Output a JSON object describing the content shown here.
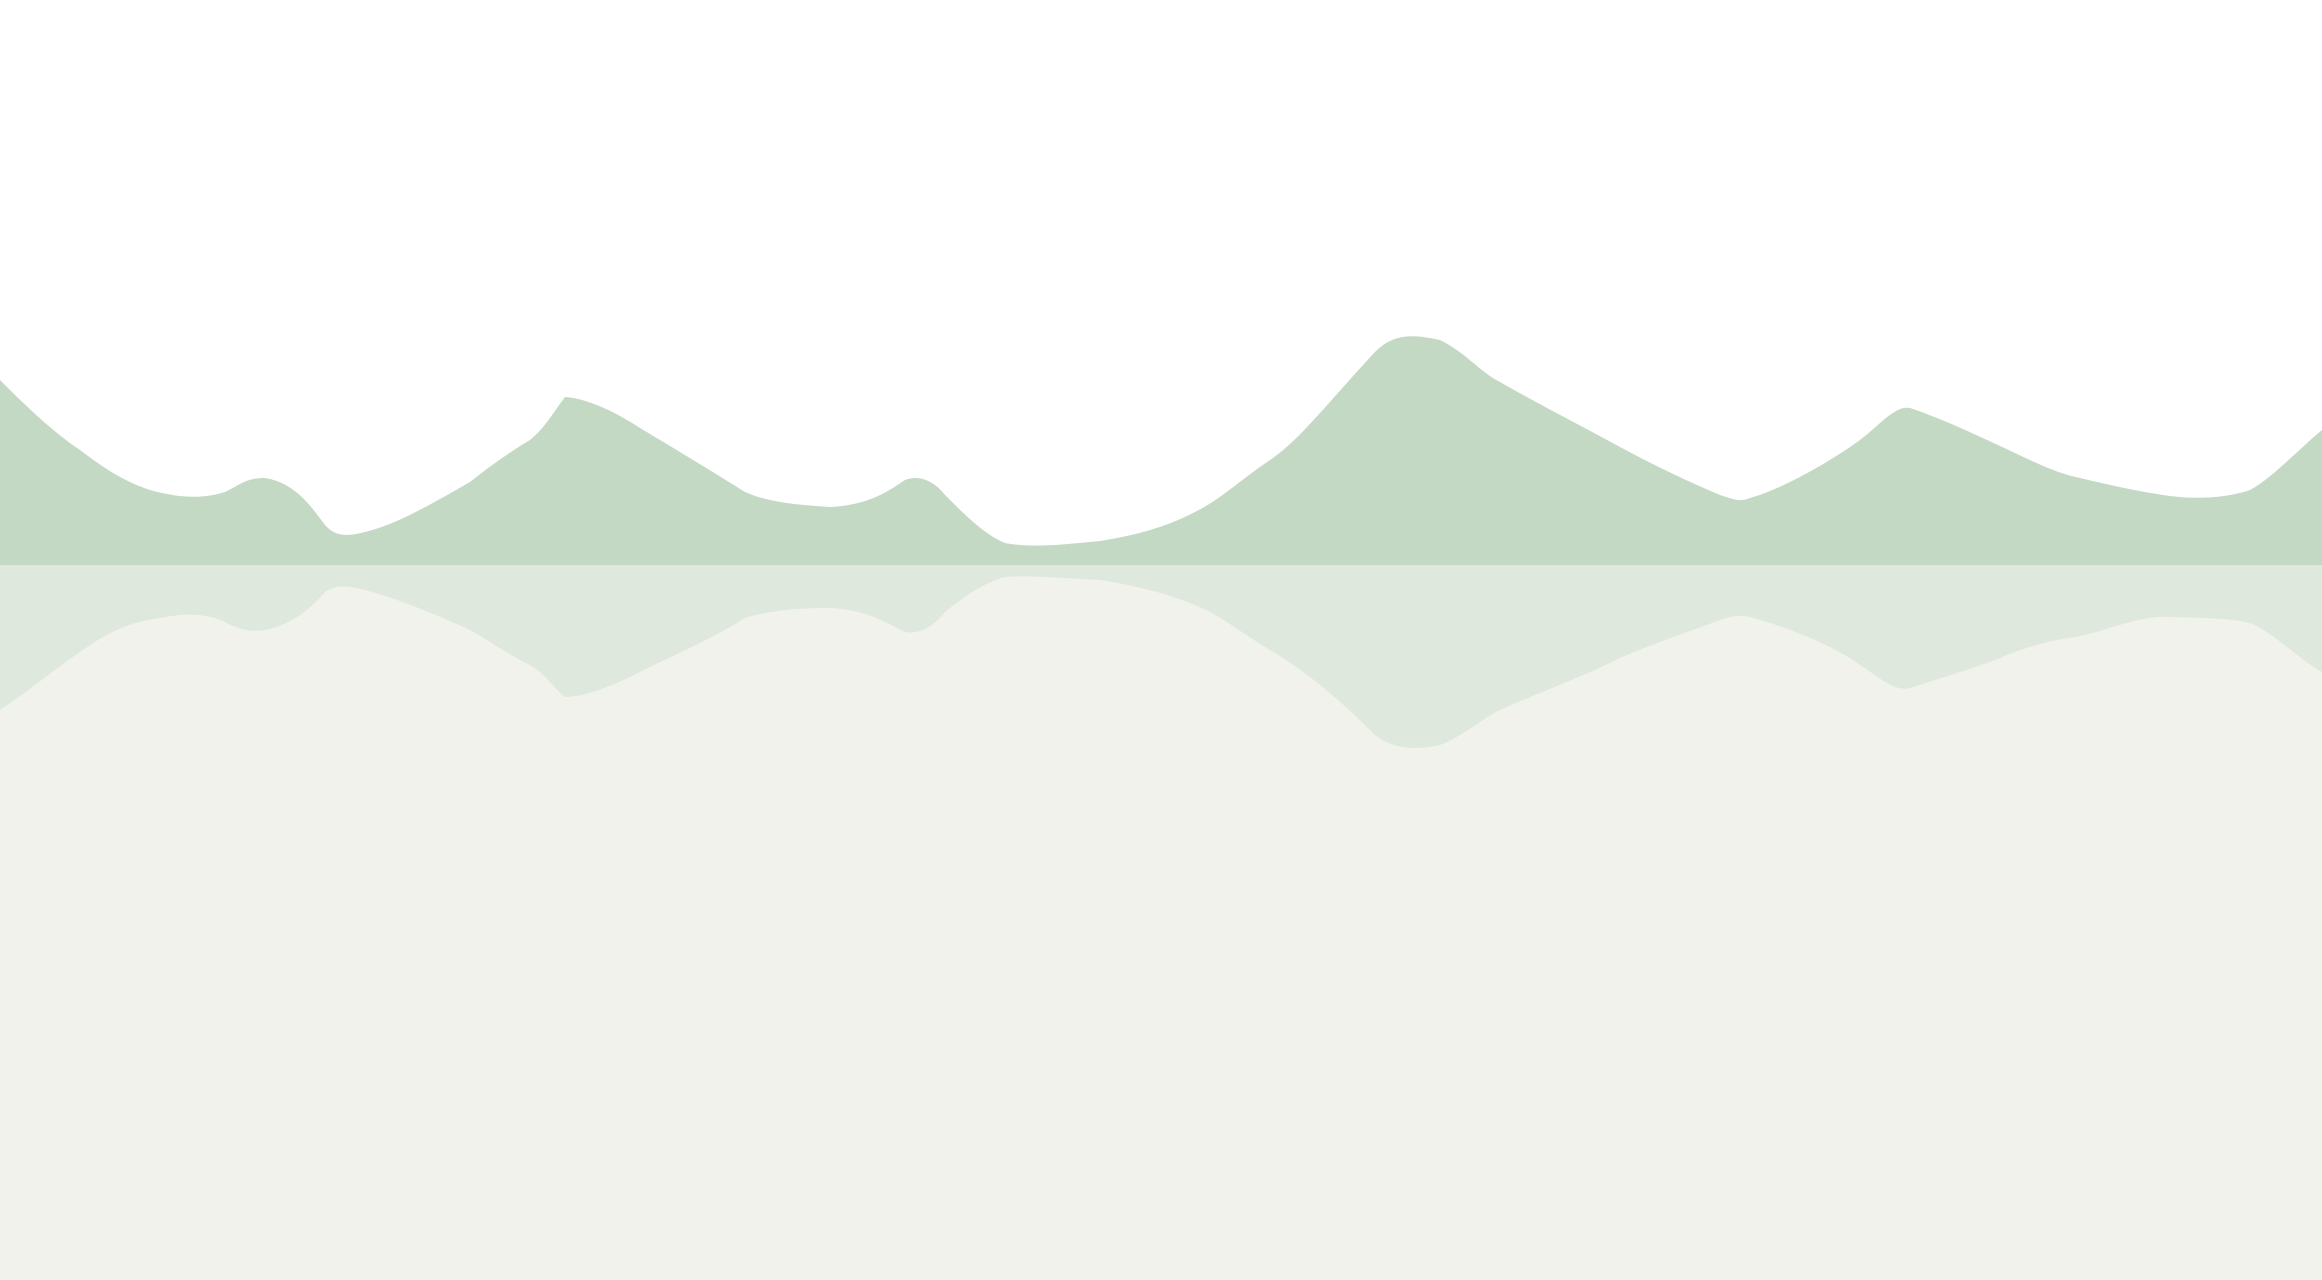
{
  "scene": {
    "description_colors": {
      "sky": "#ffffff",
      "mountains": "#c3d9c3",
      "reflection_band": "#dfe8dc",
      "water": "#f1f2ec"
    }
  }
}
